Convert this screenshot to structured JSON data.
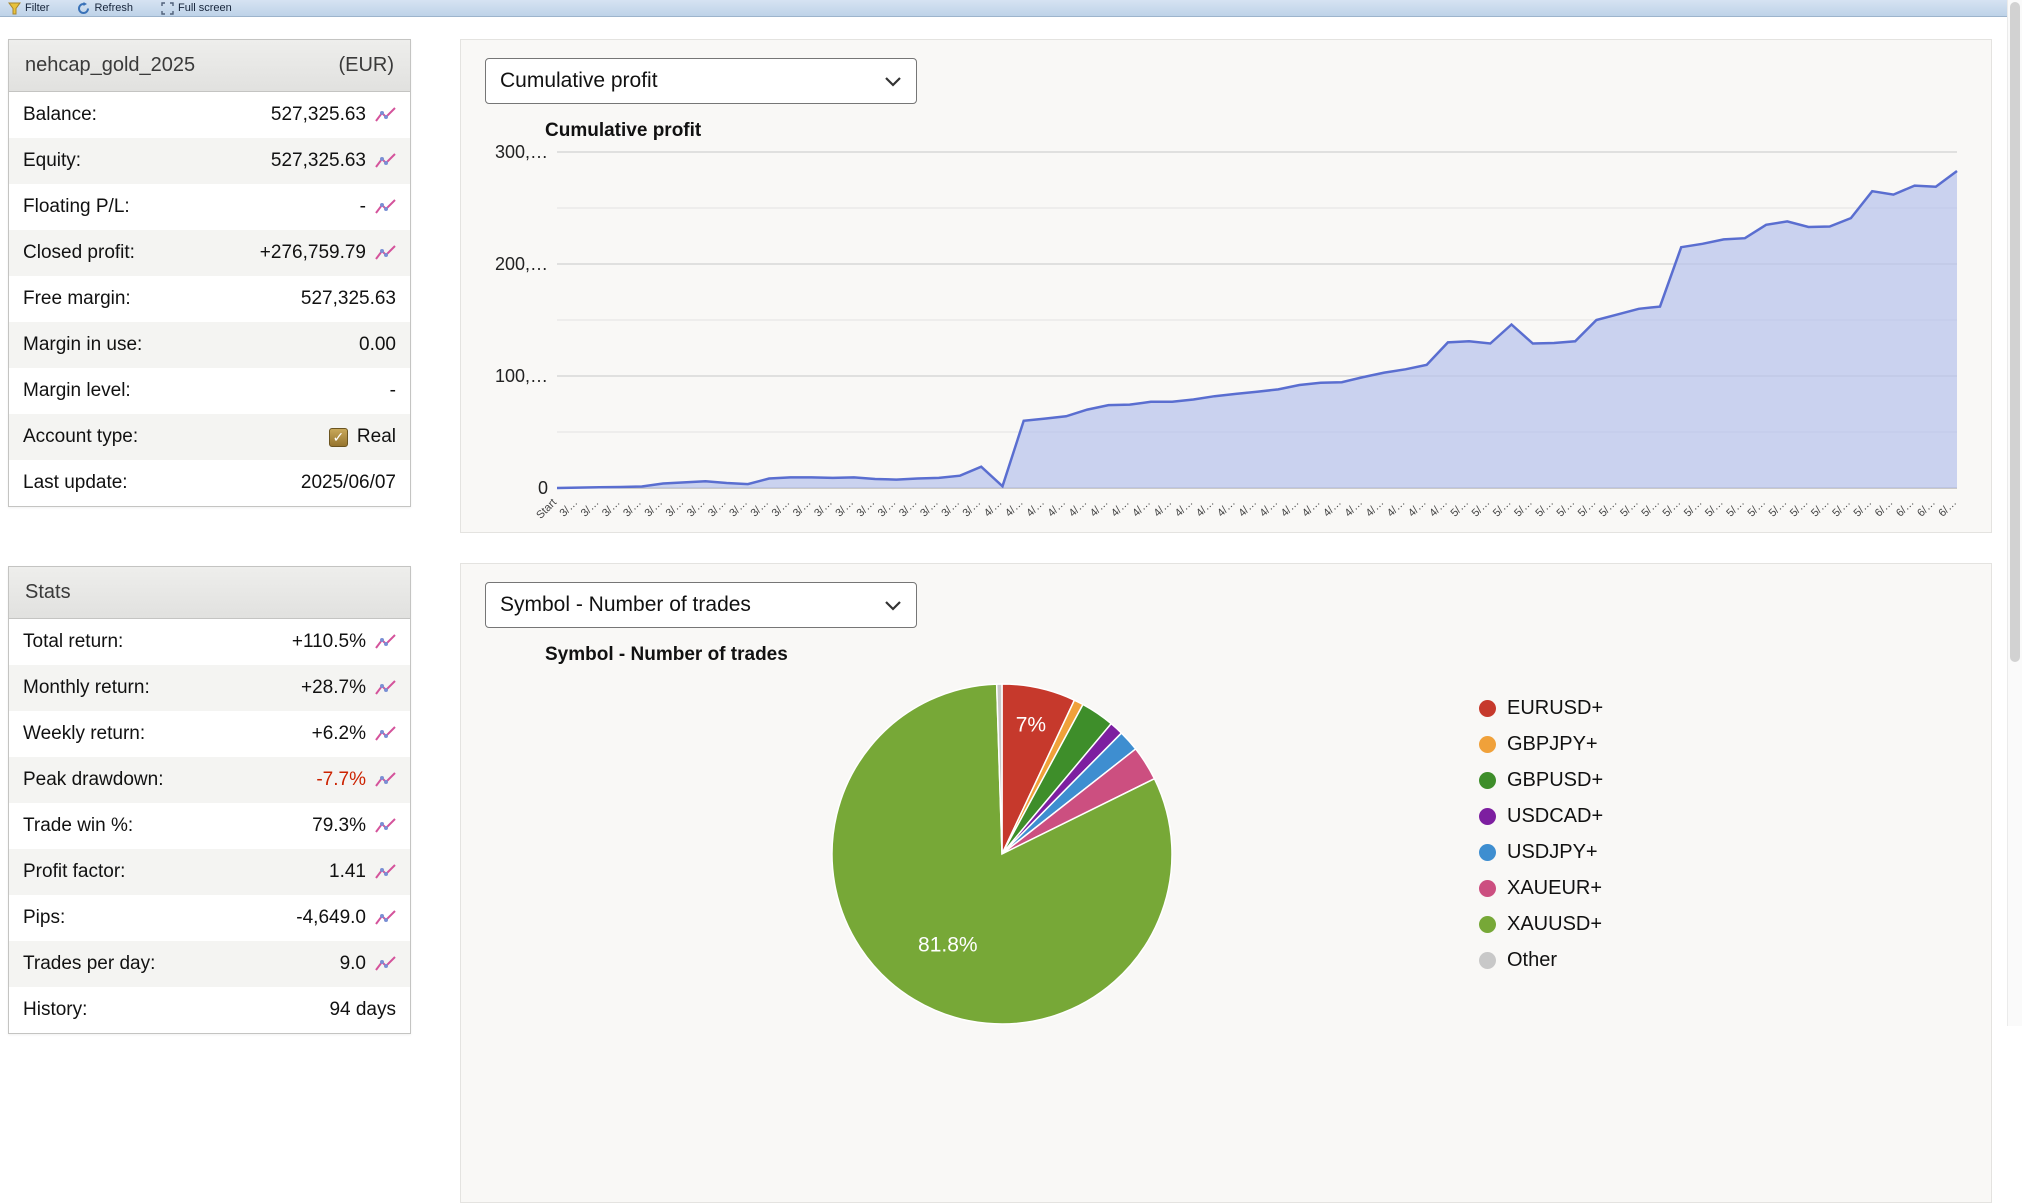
{
  "toolbar": {
    "filter": "Filter",
    "refresh": "Refresh",
    "fullscreen": "Full screen"
  },
  "icons": {
    "checkbox_check": "✓"
  },
  "account": {
    "title": "nehcap_gold_2025",
    "currency": "(EUR)",
    "rows": [
      {
        "label": "Balance:",
        "value": "527,325.63",
        "icon": true
      },
      {
        "label": "Equity:",
        "value": "527,325.63",
        "icon": true
      },
      {
        "label": "Floating P/L:",
        "value": "-",
        "icon": true
      },
      {
        "label": "Closed profit:",
        "value": "+276,759.79",
        "icon": true
      },
      {
        "label": "Free margin:",
        "value": "527,325.63",
        "icon": false
      },
      {
        "label": "Margin in use:",
        "value": "0.00",
        "icon": false
      },
      {
        "label": "Margin level:",
        "value": "-",
        "icon": false
      },
      {
        "label": "Account type:",
        "value": "Real",
        "icon": false,
        "checkbox": true
      },
      {
        "label": "Last update:",
        "value": "2025/06/07",
        "icon": false
      }
    ]
  },
  "stats": {
    "title": "Stats",
    "rows": [
      {
        "label": "Total return:",
        "value": "+110.5%",
        "icon": true
      },
      {
        "label": "Monthly return:",
        "value": "+28.7%",
        "icon": true
      },
      {
        "label": "Weekly return:",
        "value": "+6.2%",
        "icon": true
      },
      {
        "label": "Peak drawdown:",
        "value": "-7.7%",
        "icon": true,
        "negative": true
      },
      {
        "label": "Trade win %:",
        "value": "79.3%",
        "icon": true
      },
      {
        "label": "Profit factor:",
        "value": "1.41",
        "icon": true
      },
      {
        "label": "Pips:",
        "value": "-4,649.0",
        "icon": true
      },
      {
        "label": "Trades per day:",
        "value": "9.0",
        "icon": true
      },
      {
        "label": "History:",
        "value": "94 days",
        "icon": false
      }
    ]
  },
  "chart_data": [
    {
      "type": "area",
      "selector_value": "Cumulative profit",
      "title": "Cumulative profit",
      "ylim": [
        0,
        300000
      ],
      "grid_step": 50000,
      "y_tick_labels": {
        "0": "0",
        "100000": "100,…",
        "200000": "200,…",
        "300000": "300,…"
      },
      "line_color": "#5a6ed0",
      "fill_color": "#b7c2ec",
      "x_labels": [
        "Start",
        "3/…",
        "3/…",
        "3/…",
        "3/…",
        "3/…",
        "3/…",
        "3/…",
        "3/…",
        "3/…",
        "3/…",
        "3/…",
        "3/…",
        "3/…",
        "3/…",
        "3/…",
        "3/…",
        "3/…",
        "3/…",
        "3/…",
        "3/…",
        "4/…",
        "4/…",
        "4/…",
        "4/…",
        "4/…",
        "4/…",
        "4/…",
        "4/…",
        "4/…",
        "4/…",
        "4/…",
        "4/…",
        "4/…",
        "4/…",
        "4/…",
        "4/…",
        "4/…",
        "4/…",
        "4/…",
        "4/…",
        "4/…",
        "4/…",
        "5/…",
        "5/…",
        "5/…",
        "5/…",
        "5/…",
        "5/…",
        "5/…",
        "5/…",
        "5/…",
        "5/…",
        "5/…",
        "5/…",
        "5/…",
        "5/…",
        "5/…",
        "5/…",
        "5/…",
        "5/…",
        "5/…",
        "5/…",
        "6/…",
        "6/…",
        "6/…",
        "6/…"
      ],
      "values": [
        0,
        400,
        700,
        900,
        1300,
        4000,
        5000,
        6000,
        4500,
        3500,
        8500,
        9500,
        9500,
        9000,
        9500,
        8000,
        7500,
        8500,
        9000,
        11000,
        19000,
        1500,
        60000,
        62000,
        64000,
        70000,
        74000,
        74500,
        77000,
        77000,
        79000,
        82000,
        84000,
        86000,
        88000,
        92000,
        94000,
        94500,
        99000,
        103000,
        106000,
        110000,
        130000,
        131000,
        129000,
        146000,
        129000,
        129500,
        131000,
        150000,
        155000,
        160000,
        162000,
        215000,
        218000,
        222000,
        223000,
        235000,
        238000,
        233000,
        233500,
        241000,
        265000,
        262000,
        270000,
        269000,
        283000
      ]
    },
    {
      "type": "pie",
      "selector_value": "Symbol - Number of trades",
      "title": "Symbol - Number of trades",
      "slices": [
        {
          "label": "EURUSD+",
          "value": 7.0,
          "color": "#c6392c",
          "display": "7%"
        },
        {
          "label": "GBPJPY+",
          "value": 0.9,
          "color": "#f0a13a",
          "display": ""
        },
        {
          "label": "GBPUSD+",
          "value": 3.2,
          "color": "#3e8e2a",
          "display": ""
        },
        {
          "label": "USDCAD+",
          "value": 1.3,
          "color": "#7d1fa0",
          "display": ""
        },
        {
          "label": "USDJPY+",
          "value": 2.0,
          "color": "#3e8ed0",
          "display": ""
        },
        {
          "label": "XAUEUR+",
          "value": 3.3,
          "color": "#cc4f80",
          "display": ""
        },
        {
          "label": "XAUUSD+",
          "value": 81.8,
          "color": "#77a837",
          "display": "81.8%"
        },
        {
          "label": "Other",
          "value": 0.5,
          "color": "#c8c8c8",
          "display": ""
        }
      ]
    }
  ]
}
